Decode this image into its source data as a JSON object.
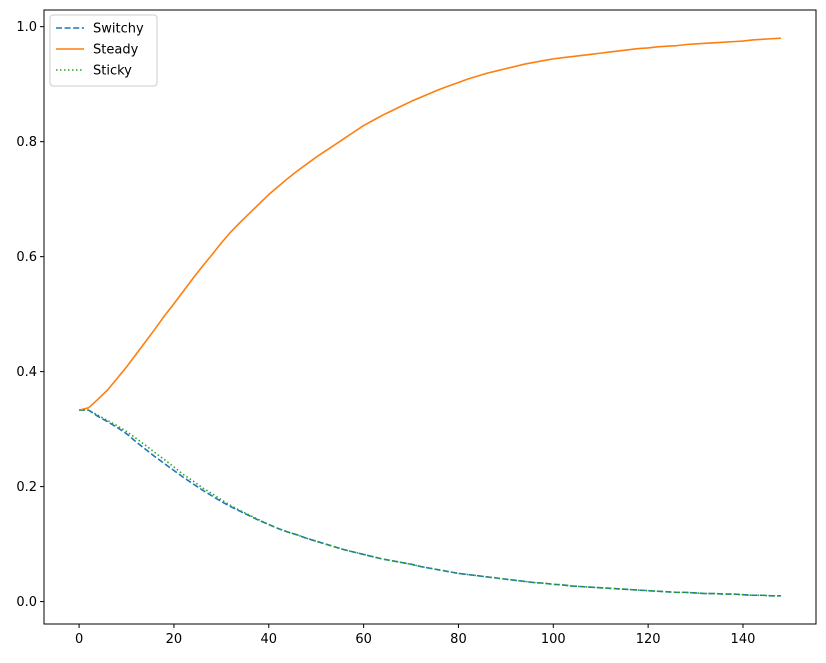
{
  "chart_data": {
    "type": "line",
    "title": "",
    "xlabel": "",
    "ylabel": "",
    "xlim": [
      -7.4,
      155.4
    ],
    "ylim": [
      -0.039,
      1.029
    ],
    "xticks": [
      0,
      20,
      40,
      60,
      80,
      100,
      120,
      140
    ],
    "xtick_labels": [
      "0",
      "20",
      "40",
      "60",
      "80",
      "100",
      "120",
      "140"
    ],
    "yticks": [
      0.0,
      0.2,
      0.4,
      0.6,
      0.8,
      1.0
    ],
    "ytick_labels": [
      "0.0",
      "0.2",
      "0.4",
      "0.6",
      "0.8",
      "1.0"
    ],
    "grid": false,
    "legend_position": "upper-left",
    "x": [
      0,
      2,
      4,
      6,
      8,
      10,
      12,
      14,
      16,
      18,
      20,
      22,
      24,
      26,
      28,
      30,
      32,
      34,
      36,
      38,
      40,
      42,
      44,
      46,
      48,
      50,
      52,
      54,
      56,
      58,
      60,
      62,
      64,
      66,
      68,
      70,
      72,
      74,
      76,
      78,
      80,
      82,
      84,
      86,
      88,
      90,
      92,
      94,
      96,
      98,
      100,
      102,
      104,
      106,
      108,
      110,
      112,
      114,
      116,
      118,
      120,
      122,
      124,
      126,
      128,
      130,
      132,
      134,
      136,
      138,
      140,
      142,
      144,
      146,
      148
    ],
    "series": [
      {
        "name": "Switchy",
        "color": "#1f77b4",
        "style": "dashed",
        "values": [
          0.333,
          0.333,
          0.322,
          0.313,
          0.303,
          0.292,
          0.278,
          0.265,
          0.252,
          0.24,
          0.228,
          0.216,
          0.205,
          0.194,
          0.184,
          0.174,
          0.165,
          0.157,
          0.149,
          0.141,
          0.134,
          0.127,
          0.121,
          0.116,
          0.11,
          0.105,
          0.1,
          0.095,
          0.09,
          0.086,
          0.082,
          0.078,
          0.074,
          0.071,
          0.068,
          0.065,
          0.061,
          0.058,
          0.055,
          0.052,
          0.049,
          0.047,
          0.045,
          0.043,
          0.041,
          0.039,
          0.037,
          0.035,
          0.033,
          0.032,
          0.03,
          0.029,
          0.027,
          0.026,
          0.025,
          0.024,
          0.023,
          0.022,
          0.021,
          0.02,
          0.019,
          0.018,
          0.017,
          0.016,
          0.016,
          0.015,
          0.014,
          0.014,
          0.013,
          0.013,
          0.012,
          0.011,
          0.011,
          0.01,
          0.01
        ]
      },
      {
        "name": "Steady",
        "color": "#ff7f0e",
        "style": "solid",
        "values": [
          0.333,
          0.337,
          0.352,
          0.368,
          0.388,
          0.408,
          0.43,
          0.452,
          0.474,
          0.497,
          0.518,
          0.54,
          0.562,
          0.583,
          0.603,
          0.624,
          0.643,
          0.66,
          0.676,
          0.692,
          0.708,
          0.722,
          0.736,
          0.749,
          0.761,
          0.773,
          0.784,
          0.795,
          0.806,
          0.817,
          0.828,
          0.837,
          0.846,
          0.854,
          0.862,
          0.87,
          0.877,
          0.884,
          0.891,
          0.897,
          0.903,
          0.909,
          0.914,
          0.919,
          0.923,
          0.927,
          0.931,
          0.935,
          0.938,
          0.941,
          0.944,
          0.946,
          0.948,
          0.95,
          0.952,
          0.954,
          0.956,
          0.958,
          0.96,
          0.962,
          0.963,
          0.965,
          0.966,
          0.967,
          0.969,
          0.97,
          0.971,
          0.972,
          0.973,
          0.974,
          0.975,
          0.977,
          0.978,
          0.979,
          0.98
        ]
      },
      {
        "name": "Sticky",
        "color": "#2ca02c",
        "style": "dotted",
        "values": [
          0.333,
          0.333,
          0.324,
          0.315,
          0.306,
          0.296,
          0.284,
          0.272,
          0.259,
          0.247,
          0.234,
          0.221,
          0.21,
          0.198,
          0.188,
          0.177,
          0.167,
          0.158,
          0.15,
          0.142,
          0.134,
          0.127,
          0.121,
          0.116,
          0.11,
          0.105,
          0.1,
          0.095,
          0.09,
          0.086,
          0.082,
          0.078,
          0.074,
          0.071,
          0.068,
          0.065,
          0.061,
          0.058,
          0.055,
          0.052,
          0.049,
          0.047,
          0.045,
          0.043,
          0.041,
          0.039,
          0.037,
          0.035,
          0.033,
          0.032,
          0.03,
          0.029,
          0.027,
          0.026,
          0.025,
          0.024,
          0.023,
          0.022,
          0.021,
          0.02,
          0.019,
          0.018,
          0.017,
          0.016,
          0.016,
          0.015,
          0.014,
          0.014,
          0.013,
          0.013,
          0.012,
          0.011,
          0.011,
          0.01,
          0.01
        ]
      }
    ]
  }
}
